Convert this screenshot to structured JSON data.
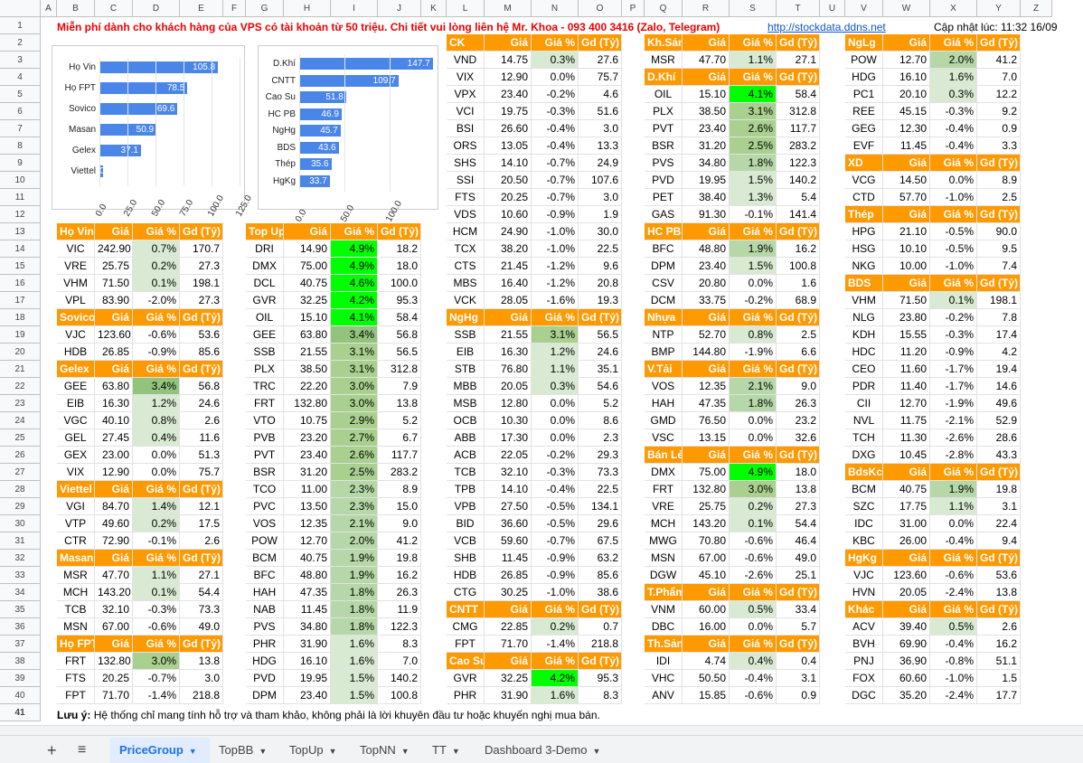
{
  "banner": {
    "text": "Miễn phí dành cho khách hàng của VPS có tài khoản từ 50 triệu. Chi tiết vui lòng liên hệ Mr. Khoa - 093 400 3416 (Zalo, Telegram)",
    "link": "http://stockdata.ddns.net",
    "updated": "Cập nhật lúc: 11:32 16/09"
  },
  "note": {
    "label": "Lưu ý:",
    "text": "Hệ thống chỉ mang tính hỗ trợ và tham khảo, không phải là lời khuyên đầu tư hoặc khuyến nghị mua bán."
  },
  "tabs": {
    "add": "+",
    "menu": "≡",
    "items": [
      {
        "label": "PriceGroup",
        "active": true
      },
      {
        "label": "TopBB"
      },
      {
        "label": "TopUp"
      },
      {
        "label": "TopNN"
      },
      {
        "label": "TT"
      },
      {
        "label": "Dashboard 3-Demo"
      }
    ]
  },
  "columns": [
    "A",
    "B",
    "C",
    "D",
    "E",
    "F",
    "G",
    "H",
    "I",
    "J",
    "K",
    "L",
    "M",
    "N",
    "O",
    "P",
    "Q",
    "R",
    "S",
    "T",
    "U",
    "V",
    "W",
    "X",
    "Y",
    "Z"
  ],
  "rows": [
    "1",
    "2",
    "3",
    "4",
    "5",
    "6",
    "7",
    "8",
    "9",
    "10",
    "11",
    "12",
    "13",
    "14",
    "15",
    "16",
    "17",
    "18",
    "19",
    "20",
    "21",
    "22",
    "23",
    "24",
    "25",
    "26",
    "27",
    "28",
    "29",
    "30",
    "31",
    "32",
    "33",
    "34",
    "35",
    "36",
    "37",
    "38",
    "39",
    "40",
    "41"
  ],
  "chart_data": [
    {
      "type": "bar",
      "categories": [
        "Họ Vin",
        "Họ FPT",
        "Sovico",
        "Masan",
        "Gelex",
        "Viettel"
      ],
      "values": [
        105.8,
        78.5,
        69.6,
        50.9,
        37.1,
        0.7
      ],
      "labels": [
        "105.8",
        "78.5",
        "69.6",
        "50.9",
        "37.1",
        "0.7"
      ],
      "xticks": [
        "0.0",
        "25.0",
        "50.0",
        "75.0",
        "100.0",
        "125.0"
      ],
      "xlim": [
        0,
        125
      ]
    },
    {
      "type": "bar",
      "categories": [
        "D.Khí",
        "CNTT",
        "Cao Su",
        "HC PB",
        "NgHg",
        "BDS",
        "Thép",
        "HgKg"
      ],
      "values": [
        147.7,
        109.7,
        51.8,
        46.9,
        45.7,
        43.6,
        35.6,
        33.7
      ],
      "labels": [
        "147.7",
        "109.7",
        "51.8",
        "46.9",
        "45.7",
        "43.6",
        "35.6",
        "33.7"
      ],
      "xticks": [
        "0.0",
        "50.0",
        "100.0"
      ],
      "xlim": [
        0,
        150
      ]
    }
  ],
  "headers": {
    "gia": "Giá",
    "pct": "Giá %",
    "gd": "Gd (Tỷ)"
  },
  "col1": [
    {
      "title": "Họ Vin",
      "rows": [
        [
          "VIC",
          "242.90",
          "0.7%",
          "170.7"
        ],
        [
          "VRE",
          "25.75",
          "0.2%",
          "27.3"
        ],
        [
          "VHM",
          "71.50",
          "0.1%",
          "198.1"
        ],
        [
          "VPL",
          "83.90",
          "-2.0%",
          "27.3"
        ]
      ]
    },
    {
      "title": "Sovico",
      "rows": [
        [
          "VJC",
          "123.60",
          "-0.6%",
          "53.6"
        ],
        [
          "HDB",
          "26.85",
          "-0.9%",
          "85.6"
        ]
      ]
    },
    {
      "title": "Gelex",
      "rows": [
        [
          "GEE",
          "63.80",
          "3.4%",
          "56.8"
        ],
        [
          "EIB",
          "16.30",
          "1.2%",
          "24.6"
        ],
        [
          "VGC",
          "40.10",
          "0.8%",
          "2.6"
        ],
        [
          "GEL",
          "27.45",
          "0.4%",
          "11.6"
        ],
        [
          "GEX",
          "23.00",
          "0.0%",
          "51.3"
        ],
        [
          "VIX",
          "12.90",
          "0.0%",
          "75.7"
        ]
      ]
    },
    {
      "title": "Viettel",
      "rows": [
        [
          "VGI",
          "84.70",
          "1.4%",
          "12.1"
        ],
        [
          "VTP",
          "49.60",
          "0.2%",
          "17.5"
        ],
        [
          "CTR",
          "72.90",
          "-0.1%",
          "2.6"
        ]
      ]
    },
    {
      "title": "Masan",
      "rows": [
        [
          "MSR",
          "47.70",
          "1.1%",
          "27.1"
        ],
        [
          "MCH",
          "143.20",
          "0.1%",
          "54.4"
        ],
        [
          "TCB",
          "32.10",
          "-0.3%",
          "73.3"
        ],
        [
          "MSN",
          "67.00",
          "-0.6%",
          "49.0"
        ]
      ]
    },
    {
      "title": "Họ FPT",
      "rows": [
        [
          "FRT",
          "132.80",
          "3.0%",
          "13.8"
        ],
        [
          "FTS",
          "20.25",
          "-0.7%",
          "3.0"
        ],
        [
          "FPT",
          "71.70",
          "-1.4%",
          "218.8"
        ]
      ]
    }
  ],
  "col2": [
    {
      "title": "Top Up",
      "rows": [
        [
          "DRI",
          "14.90",
          "4.9%",
          "18.2"
        ],
        [
          "DMX",
          "75.00",
          "4.9%",
          "18.0"
        ],
        [
          "DCL",
          "40.75",
          "4.6%",
          "100.0"
        ],
        [
          "GVR",
          "32.25",
          "4.2%",
          "95.3"
        ],
        [
          "OIL",
          "15.10",
          "4.1%",
          "58.4"
        ],
        [
          "GEE",
          "63.80",
          "3.4%",
          "56.8"
        ],
        [
          "SSB",
          "21.55",
          "3.1%",
          "56.5"
        ],
        [
          "PLX",
          "38.50",
          "3.1%",
          "312.8"
        ],
        [
          "TRC",
          "22.20",
          "3.0%",
          "7.9"
        ],
        [
          "FRT",
          "132.80",
          "3.0%",
          "13.8"
        ],
        [
          "VTO",
          "10.75",
          "2.9%",
          "5.2"
        ],
        [
          "PVB",
          "23.20",
          "2.7%",
          "6.7"
        ],
        [
          "PVT",
          "23.40",
          "2.6%",
          "117.7"
        ],
        [
          "BSR",
          "31.20",
          "2.5%",
          "283.2"
        ],
        [
          "TCO",
          "11.00",
          "2.3%",
          "8.9"
        ],
        [
          "PVC",
          "13.50",
          "2.3%",
          "15.0"
        ],
        [
          "VOS",
          "12.35",
          "2.1%",
          "9.0"
        ],
        [
          "POW",
          "12.70",
          "2.0%",
          "41.2"
        ],
        [
          "BCM",
          "40.75",
          "1.9%",
          "19.8"
        ],
        [
          "BFC",
          "48.80",
          "1.9%",
          "16.2"
        ],
        [
          "HAH",
          "47.35",
          "1.8%",
          "26.3"
        ],
        [
          "NAB",
          "11.45",
          "1.8%",
          "11.9"
        ],
        [
          "PVS",
          "34.80",
          "1.8%",
          "122.3"
        ],
        [
          "PHR",
          "31.90",
          "1.6%",
          "8.3"
        ],
        [
          "HDG",
          "16.10",
          "1.6%",
          "7.0"
        ],
        [
          "PVD",
          "19.95",
          "1.5%",
          "140.2"
        ],
        [
          "DPM",
          "23.40",
          "1.5%",
          "100.8"
        ]
      ]
    }
  ],
  "col3": [
    {
      "title": "CK",
      "rows": [
        [
          "VND",
          "14.75",
          "0.3%",
          "27.6"
        ],
        [
          "VIX",
          "12.90",
          "0.0%",
          "75.7"
        ],
        [
          "VPX",
          "23.40",
          "-0.2%",
          "4.6"
        ],
        [
          "VCI",
          "19.75",
          "-0.3%",
          "51.6"
        ],
        [
          "BSI",
          "26.60",
          "-0.4%",
          "3.0"
        ],
        [
          "ORS",
          "13.05",
          "-0.4%",
          "13.3"
        ],
        [
          "SHS",
          "14.10",
          "-0.7%",
          "24.9"
        ],
        [
          "SSI",
          "20.50",
          "-0.7%",
          "107.6"
        ],
        [
          "FTS",
          "20.25",
          "-0.7%",
          "3.0"
        ],
        [
          "VDS",
          "10.60",
          "-0.9%",
          "1.9"
        ],
        [
          "HCM",
          "24.90",
          "-1.0%",
          "30.0"
        ],
        [
          "TCX",
          "38.20",
          "-1.0%",
          "22.5"
        ],
        [
          "CTS",
          "21.45",
          "-1.2%",
          "9.6"
        ],
        [
          "MBS",
          "16.40",
          "-1.2%",
          "20.8"
        ],
        [
          "VCK",
          "28.05",
          "-1.6%",
          "19.3"
        ]
      ]
    },
    {
      "title": "NgHg",
      "rows": [
        [
          "SSB",
          "21.55",
          "3.1%",
          "56.5"
        ],
        [
          "EIB",
          "16.30",
          "1.2%",
          "24.6"
        ],
        [
          "STB",
          "76.80",
          "1.1%",
          "35.1"
        ],
        [
          "MBB",
          "20.05",
          "0.3%",
          "54.6"
        ],
        [
          "MSB",
          "12.80",
          "0.0%",
          "5.2"
        ],
        [
          "OCB",
          "10.30",
          "0.0%",
          "8.6"
        ],
        [
          "ABB",
          "17.30",
          "0.0%",
          "2.3"
        ],
        [
          "ACB",
          "22.05",
          "-0.2%",
          "29.3"
        ],
        [
          "TCB",
          "32.10",
          "-0.3%",
          "73.3"
        ],
        [
          "TPB",
          "14.10",
          "-0.4%",
          "22.5"
        ],
        [
          "VPB",
          "27.50",
          "-0.5%",
          "134.1"
        ],
        [
          "BID",
          "36.60",
          "-0.5%",
          "29.6"
        ],
        [
          "VCB",
          "59.60",
          "-0.7%",
          "67.5"
        ],
        [
          "SHB",
          "11.45",
          "-0.9%",
          "63.2"
        ],
        [
          "HDB",
          "26.85",
          "-0.9%",
          "85.6"
        ],
        [
          "CTG",
          "30.25",
          "-1.0%",
          "38.6"
        ]
      ]
    },
    {
      "title": "CNTT",
      "rows": [
        [
          "CMG",
          "22.85",
          "0.2%",
          "0.7"
        ],
        [
          "FPT",
          "71.70",
          "-1.4%",
          "218.8"
        ]
      ]
    },
    {
      "title": "Cao Su",
      "rows": [
        [
          "GVR",
          "32.25",
          "4.2%",
          "95.3"
        ],
        [
          "PHR",
          "31.90",
          "1.6%",
          "8.3"
        ]
      ]
    }
  ],
  "col4": [
    {
      "title": "Kh.Sản",
      "rows": [
        [
          "MSR",
          "47.70",
          "1.1%",
          "27.1"
        ]
      ]
    },
    {
      "title": "D.Khí",
      "rows": [
        [
          "OIL",
          "15.10",
          "4.1%",
          "58.4"
        ],
        [
          "PLX",
          "38.50",
          "3.1%",
          "312.8"
        ],
        [
          "PVT",
          "23.40",
          "2.6%",
          "117.7"
        ],
        [
          "BSR",
          "31.20",
          "2.5%",
          "283.2"
        ],
        [
          "PVS",
          "34.80",
          "1.8%",
          "122.3"
        ],
        [
          "PVD",
          "19.95",
          "1.5%",
          "140.2"
        ],
        [
          "PET",
          "38.40",
          "1.3%",
          "5.4"
        ],
        [
          "GAS",
          "91.30",
          "-0.1%",
          "141.4"
        ]
      ]
    },
    {
      "title": "HC PB",
      "rows": [
        [
          "BFC",
          "48.80",
          "1.9%",
          "16.2"
        ],
        [
          "DPM",
          "23.40",
          "1.5%",
          "100.8"
        ],
        [
          "CSV",
          "20.80",
          "0.0%",
          "1.6"
        ],
        [
          "DCM",
          "33.75",
          "-0.2%",
          "68.9"
        ]
      ]
    },
    {
      "title": "Nhựa",
      "rows": [
        [
          "NTP",
          "52.70",
          "0.8%",
          "2.5"
        ],
        [
          "BMP",
          "144.80",
          "-1.9%",
          "6.6"
        ]
      ]
    },
    {
      "title": "V.Tải",
      "rows": [
        [
          "VOS",
          "12.35",
          "2.1%",
          "9.0"
        ],
        [
          "HAH",
          "47.35",
          "1.8%",
          "26.3"
        ],
        [
          "GMD",
          "76.50",
          "0.0%",
          "23.2"
        ],
        [
          "VSC",
          "13.15",
          "0.0%",
          "32.6"
        ]
      ]
    },
    {
      "title": "Bán Lẻ",
      "rows": [
        [
          "DMX",
          "75.00",
          "4.9%",
          "18.0"
        ],
        [
          "FRT",
          "132.80",
          "3.0%",
          "13.8"
        ],
        [
          "VRE",
          "25.75",
          "0.2%",
          "27.3"
        ],
        [
          "MCH",
          "143.20",
          "0.1%",
          "54.4"
        ],
        [
          "MWG",
          "70.80",
          "-0.6%",
          "46.4"
        ],
        [
          "MSN",
          "67.00",
          "-0.6%",
          "49.0"
        ],
        [
          "DGW",
          "45.10",
          "-2.6%",
          "25.1"
        ]
      ]
    },
    {
      "title": "T.Phẩm",
      "rows": [
        [
          "VNM",
          "60.00",
          "0.5%",
          "33.4"
        ],
        [
          "DBC",
          "16.00",
          "0.0%",
          "5.7"
        ]
      ]
    },
    {
      "title": "Th.Sản",
      "rows": [
        [
          "IDI",
          "4.74",
          "0.4%",
          "0.4"
        ],
        [
          "VHC",
          "50.50",
          "-0.4%",
          "3.1"
        ],
        [
          "ANV",
          "15.85",
          "-0.6%",
          "0.9"
        ]
      ]
    }
  ],
  "col5": [
    {
      "title": "NgLg",
      "rows": [
        [
          "POW",
          "12.70",
          "2.0%",
          "41.2"
        ],
        [
          "HDG",
          "16.10",
          "1.6%",
          "7.0"
        ],
        [
          "PC1",
          "20.10",
          "0.3%",
          "12.2"
        ],
        [
          "REE",
          "45.15",
          "-0.3%",
          "9.2"
        ],
        [
          "GEG",
          "12.30",
          "-0.4%",
          "0.9"
        ],
        [
          "EVF",
          "11.45",
          "-0.4%",
          "3.3"
        ]
      ]
    },
    {
      "title": "XD",
      "rows": [
        [
          "VCG",
          "14.50",
          "0.0%",
          "8.9"
        ],
        [
          "CTD",
          "57.70",
          "-1.0%",
          "2.5"
        ]
      ]
    },
    {
      "title": "Thép",
      "rows": [
        [
          "HPG",
          "21.10",
          "-0.5%",
          "90.0"
        ],
        [
          "HSG",
          "10.10",
          "-0.5%",
          "9.5"
        ],
        [
          "NKG",
          "10.00",
          "-1.0%",
          "7.4"
        ]
      ]
    },
    {
      "title": "BDS",
      "rows": [
        [
          "VHM",
          "71.50",
          "0.1%",
          "198.1"
        ],
        [
          "NLG",
          "23.80",
          "-0.2%",
          "7.8"
        ],
        [
          "KDH",
          "15.55",
          "-0.3%",
          "17.4"
        ],
        [
          "HDC",
          "11.20",
          "-0.9%",
          "4.2"
        ],
        [
          "CEO",
          "11.60",
          "-1.7%",
          "19.4"
        ],
        [
          "PDR",
          "11.40",
          "-1.7%",
          "14.6"
        ],
        [
          "CII",
          "12.70",
          "-1.9%",
          "49.6"
        ],
        [
          "NVL",
          "11.75",
          "-2.1%",
          "52.9"
        ],
        [
          "TCH",
          "11.30",
          "-2.6%",
          "28.6"
        ],
        [
          "DXG",
          "10.45",
          "-2.8%",
          "43.3"
        ]
      ]
    },
    {
      "title": "BdsKcn",
      "rows": [
        [
          "BCM",
          "40.75",
          "1.9%",
          "19.8"
        ],
        [
          "SZC",
          "17.75",
          "1.1%",
          "3.1"
        ],
        [
          "IDC",
          "31.00",
          "0.0%",
          "22.4"
        ],
        [
          "KBC",
          "26.00",
          "-0.4%",
          "9.4"
        ]
      ]
    },
    {
      "title": "HgKg",
      "rows": [
        [
          "VJC",
          "123.60",
          "-0.6%",
          "53.6"
        ],
        [
          "HVN",
          "20.05",
          "-2.4%",
          "13.8"
        ]
      ]
    },
    {
      "title": "Khác",
      "rows": [
        [
          "ACV",
          "39.40",
          "0.5%",
          "2.6"
        ],
        [
          "BVH",
          "69.90",
          "-0.4%",
          "16.2"
        ],
        [
          "PNJ",
          "36.90",
          "-0.8%",
          "51.1"
        ],
        [
          "FOX",
          "60.60",
          "-1.0%",
          "1.5"
        ],
        [
          "DGC",
          "35.20",
          "-2.4%",
          "17.7"
        ]
      ]
    }
  ]
}
